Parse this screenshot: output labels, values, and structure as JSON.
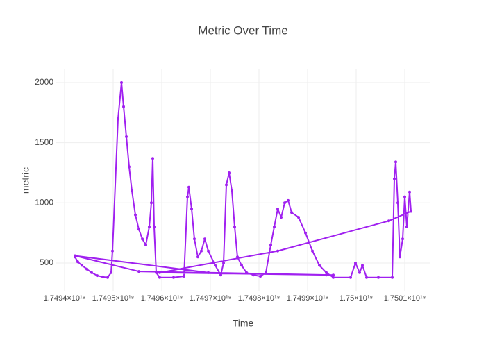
{
  "chart_data": {
    "type": "line",
    "title": "Metric Over Time",
    "x_label": "Time",
    "y_label": "metric",
    "grid": true,
    "xlim": [
      1.74938143e+18,
      1.75015286e+18
    ],
    "ylim": [
      263,
      2110
    ],
    "xticks": [
      {
        "value": 1.7494e+18,
        "label": "1.7494×10¹⁸"
      },
      {
        "value": 1.7495e+18,
        "label": "1.7495×10¹⁸"
      },
      {
        "value": 1.7496e+18,
        "label": "1.7496×10¹⁸"
      },
      {
        "value": 1.7497e+18,
        "label": "1.7497×10¹⁸"
      },
      {
        "value": 1.7498e+18,
        "label": "1.7498×10¹⁸"
      },
      {
        "value": 1.7499e+18,
        "label": "1.7499×10¹⁸"
      },
      {
        "value": 1.75e+18,
        "label": "1.75×10¹⁸"
      },
      {
        "value": 1.7501e+18,
        "label": "1.7501×10¹⁸"
      }
    ],
    "yticks": [
      500,
      1000,
      1500,
      2000
    ],
    "series": [
      {
        "color": "#a020f0",
        "x": [
          1.74942143e+18,
          1.74942714e+18,
          1.74943571e+18,
          1.74944571e+18,
          1.74945571e+18,
          1.74946714e+18,
          1.74947857e+18,
          1.74948857e+18,
          1.74949571e+18,
          1.74949857e+18,
          1.74951e+18,
          1.74951714e+18,
          1.74952143e+18,
          1.74952714e+18,
          1.74953286e+18,
          1.74953857e+18,
          1.74954571e+18,
          1.74955286e+18,
          1.74956e+18,
          1.74956714e+18,
          1.74957429e+18,
          1.74957857e+18,
          1.74958143e+18,
          1.74958429e+18,
          1.74958857e+18,
          1.74959571e+18,
          1.74962429e+18,
          1.74964571e+18,
          1.74965286e+18,
          1.74965571e+18,
          1.74966143e+18,
          1.74966714e+18,
          1.74967429e+18,
          1.74968143e+18,
          1.74968857e+18,
          1.74969571e+18,
          1.74971e+18,
          1.74972143e+18,
          1.74972714e+18,
          1.74973286e+18,
          1.74973857e+18,
          1.74974429e+18,
          1.74975e+18,
          1.74975571e+18,
          1.74976429e+18,
          1.74977429e+18,
          1.74978857e+18,
          1.74980286e+18,
          1.74981429e+18,
          1.74982429e+18,
          1.74983143e+18,
          1.74983857e+18,
          1.74984571e+18,
          1.74985286e+18,
          1.74986e+18,
          1.74986714e+18,
          1.74988143e+18,
          1.74989571e+18,
          1.74991e+18,
          1.74992429e+18,
          1.74993857e+18,
          1.74995286e+18,
          1.74998857e+18,
          1.74999857e+18,
          1.75000714e+18,
          1.75001286e+18,
          1.75002143e+18,
          1.75004571e+18,
          1.75007429e+18,
          1.75007857e+18,
          1.75008143e+18,
          1.75008571e+18,
          1.75009e+18,
          1.75009571e+18,
          1.7501e+18,
          1.75010429e+18,
          1.75011e+18,
          1.75011286e+18,
          1.75006714e+18,
          1.74983857e+18,
          1.74959571e+18,
          1.74995286e+18,
          1.74969571e+18,
          1.74942143e+18,
          1.74955286e+18,
          1.74993857e+18
        ],
        "values": [
          550,
          510,
          480,
          450,
          420,
          395,
          385,
          380,
          420,
          600,
          1700,
          2000,
          1800,
          1550,
          1300,
          1100,
          900,
          780,
          700,
          650,
          800,
          1000,
          1370,
          800,
          420,
          380,
          380,
          390,
          1050,
          1130,
          950,
          700,
          550,
          600,
          700,
          600,
          480,
          400,
          500,
          1150,
          1250,
          1100,
          800,
          550,
          480,
          420,
          400,
          390,
          420,
          650,
          800,
          950,
          880,
          1000,
          1020,
          920,
          880,
          750,
          600,
          480,
          420,
          380,
          380,
          500,
          420,
          480,
          380,
          380,
          380,
          1200,
          1340,
          1000,
          550,
          700,
          1050,
          800,
          1090,
          930,
          850,
          600,
          420,
          400,
          420,
          560,
          430,
          400
        ]
      }
    ]
  }
}
